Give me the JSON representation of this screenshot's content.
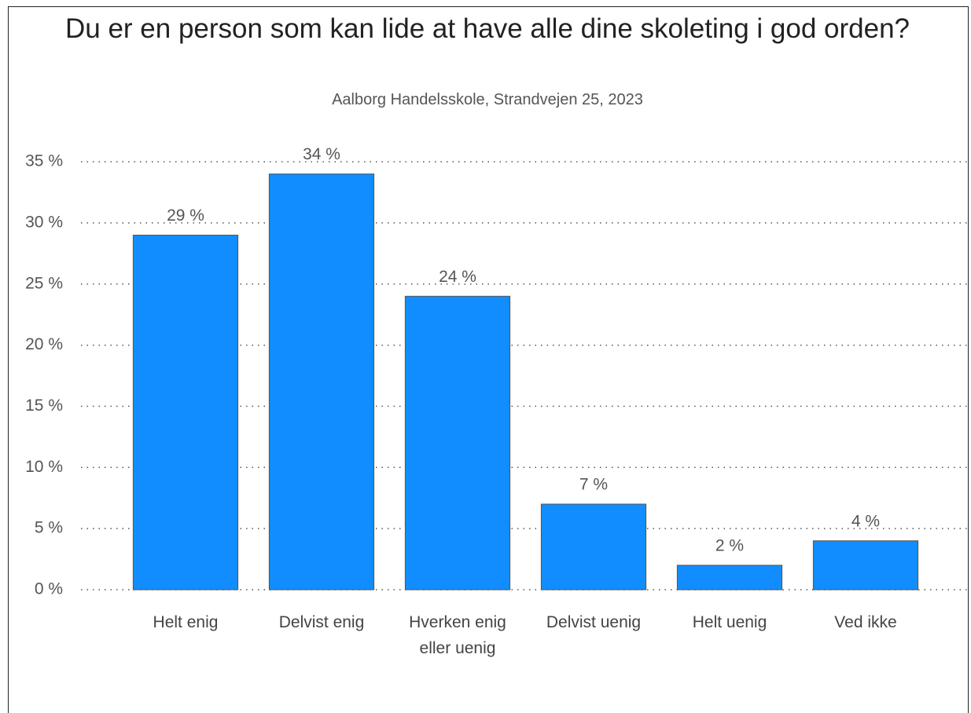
{
  "chart_data": {
    "type": "bar",
    "title": "Du er en person som kan lide at have alle dine skoleting i god orden?",
    "subtitle": "Aalborg Handelsskole, Strandvejen 25, 2023",
    "categories": [
      "Helt enig",
      "Delvist enig",
      "Hverken enig eller uenig",
      "Delvist uenig",
      "Helt uenig",
      "Ved ikke"
    ],
    "values": [
      29,
      34,
      24,
      7,
      2,
      4
    ],
    "value_labels": [
      "29 %",
      "34 %",
      "24 %",
      "7 %",
      "2 %",
      "4 %"
    ],
    "color": "#118dff",
    "ylim": [
      0,
      35
    ],
    "yticks": [
      {
        "value": 0,
        "label": "0 %"
      },
      {
        "value": 5,
        "label": "5 %"
      },
      {
        "value": 10,
        "label": "10 %"
      },
      {
        "value": 15,
        "label": "15 %"
      },
      {
        "value": 20,
        "label": "20 %"
      },
      {
        "value": 25,
        "label": "25 %"
      },
      {
        "value": 30,
        "label": "30 %"
      },
      {
        "value": 35,
        "label": "35 %"
      }
    ],
    "grid": true
  }
}
